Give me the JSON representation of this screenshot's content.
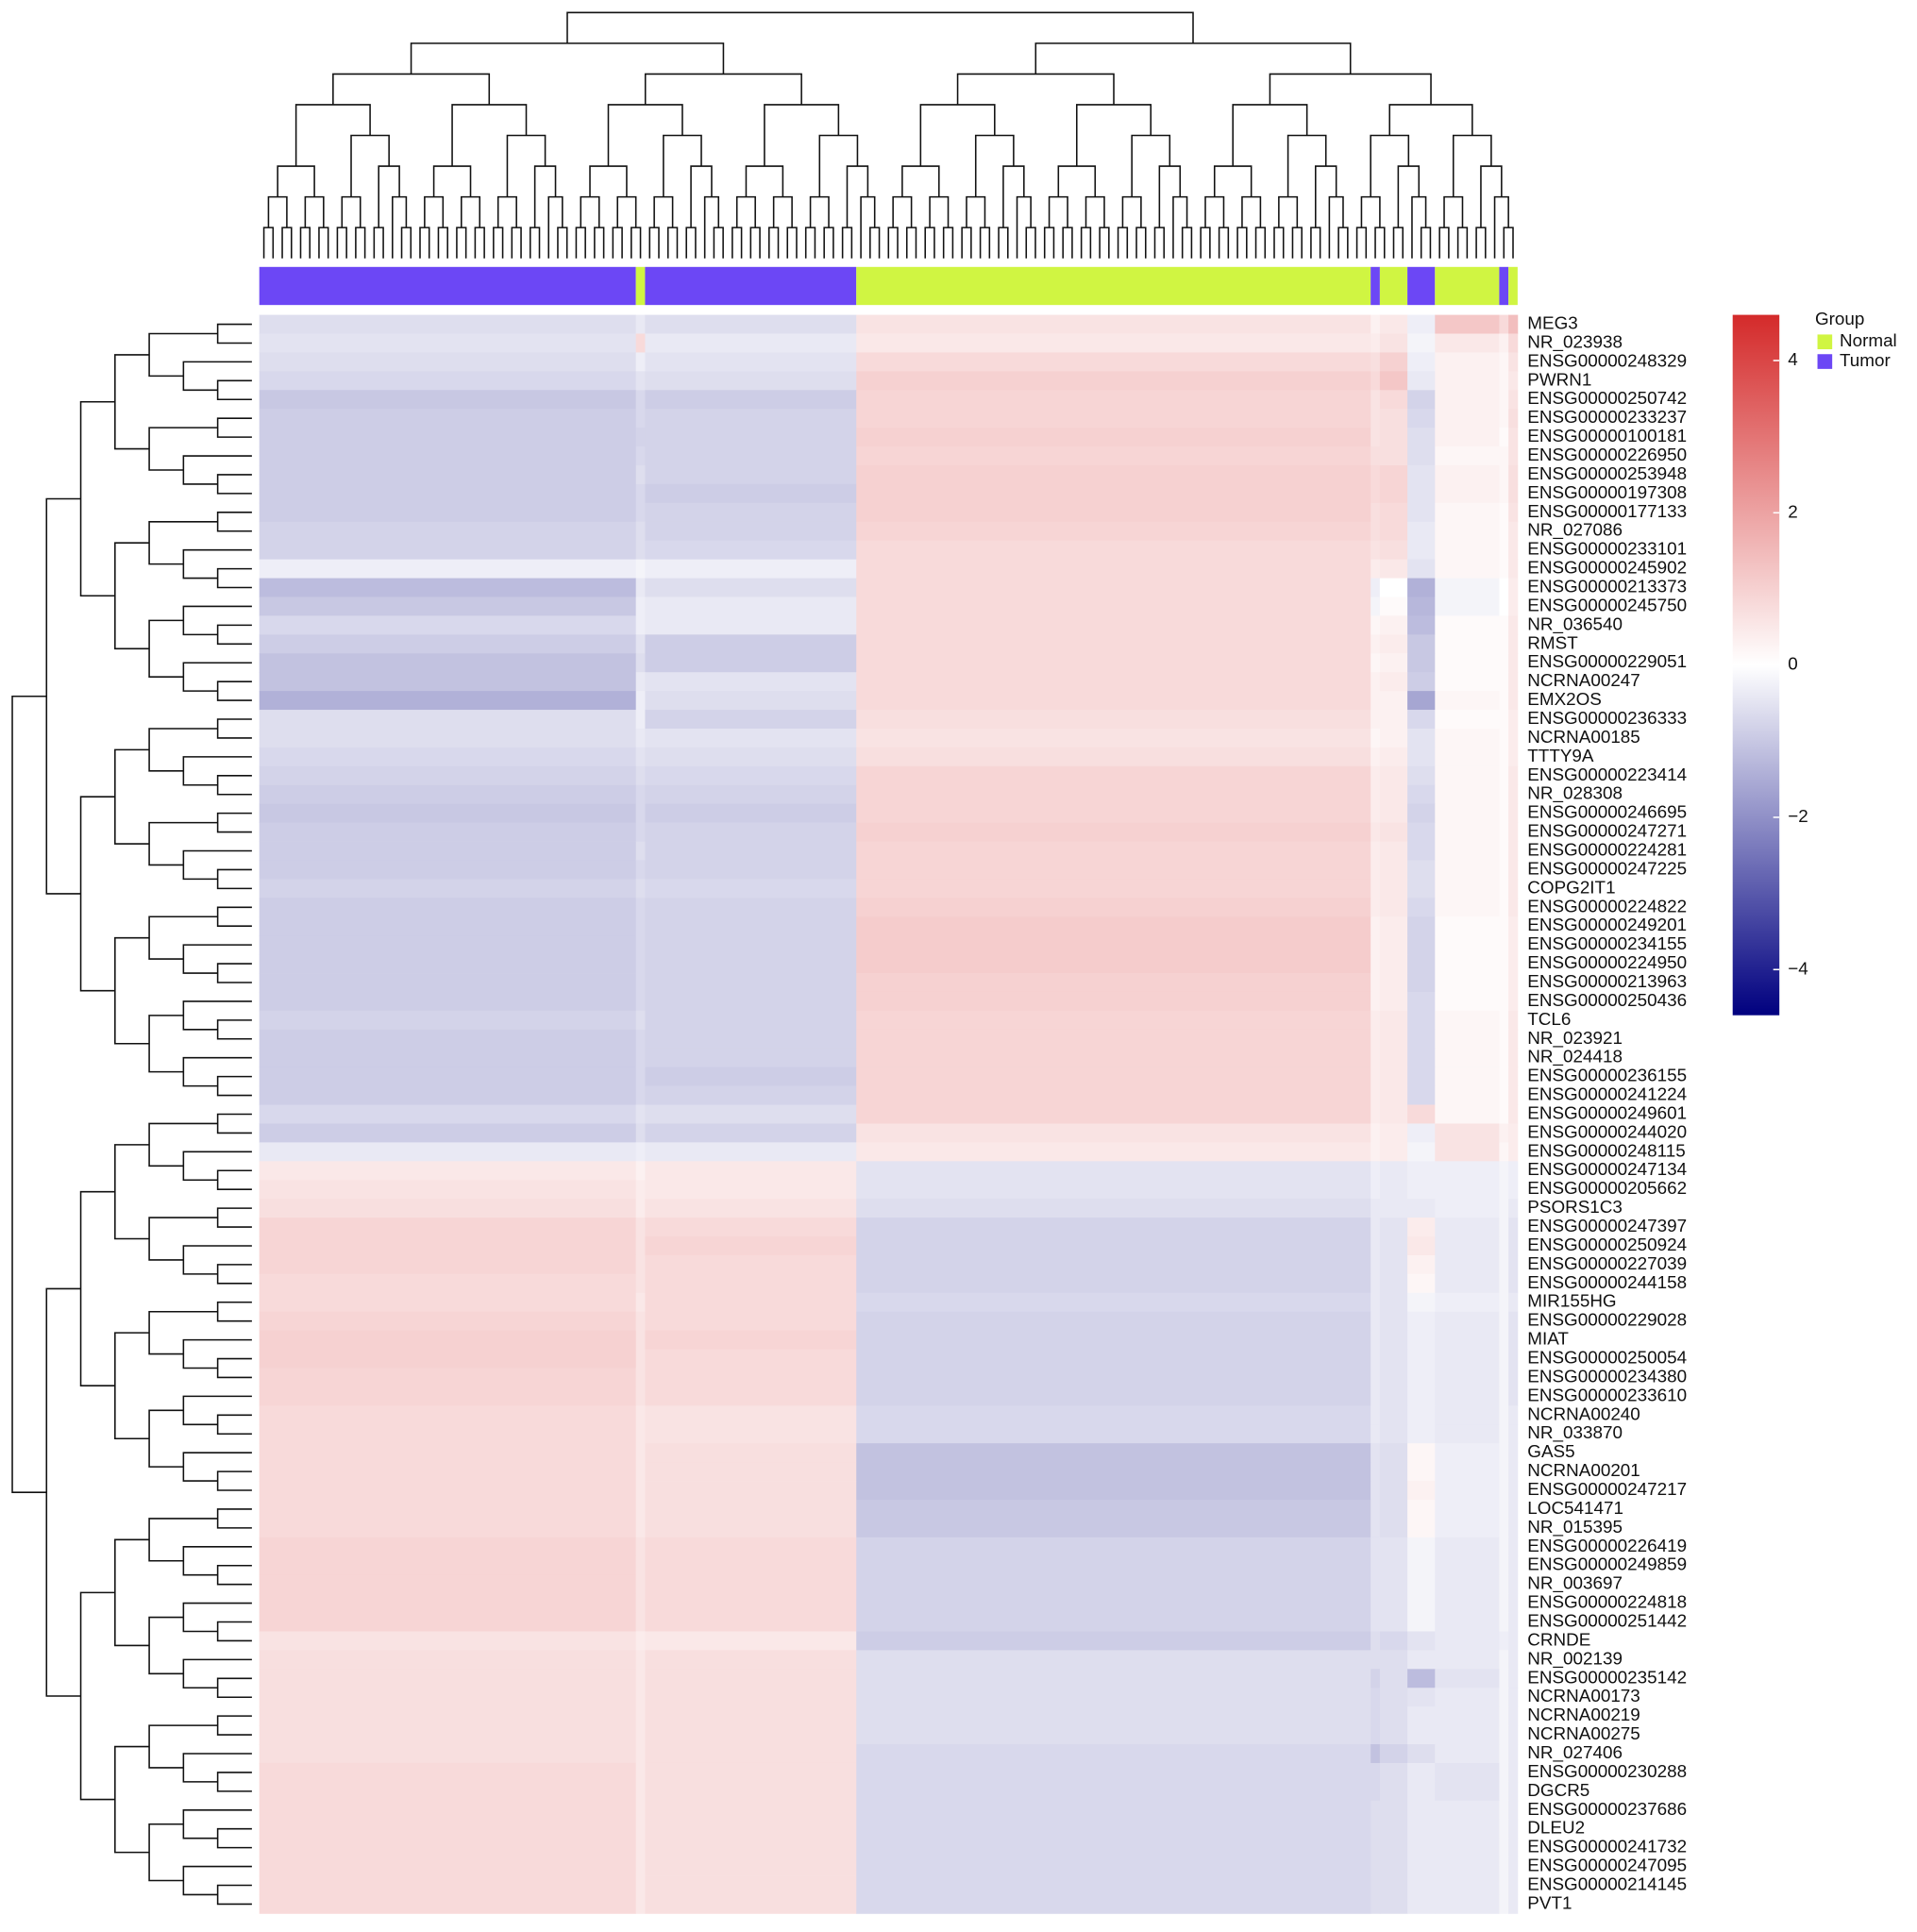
{
  "chart_data": {
    "type": "heatmap",
    "rows": [
      "MEG3",
      "NR_023938",
      "ENSG00000248329",
      "PWRN1",
      "ENSG00000250742",
      "ENSG00000233237",
      "ENSG00000100181",
      "ENSG00000226950",
      "ENSG00000253948",
      "ENSG00000197308",
      "ENSG00000177133",
      "NR_027086",
      "ENSG00000233101",
      "ENSG00000245902",
      "ENSG00000213373",
      "ENSG00000245750",
      "NR_036540",
      "RMST",
      "ENSG00000229051",
      "NCRNA00247",
      "EMX2OS",
      "ENSG00000236333",
      "NCRNA00185",
      "TTTY9A",
      "ENSG00000223414",
      "NR_028308",
      "ENSG00000246695",
      "ENSG00000247271",
      "ENSG00000224281",
      "ENSG00000247225",
      "COPG2IT1",
      "ENSG00000224822",
      "ENSG00000249201",
      "ENSG00000234155",
      "ENSG00000224950",
      "ENSG00000213963",
      "ENSG00000250436",
      "TCL6",
      "NR_023921",
      "NR_024418",
      "ENSG00000236155",
      "ENSG00000241224",
      "ENSG00000249601",
      "ENSG00000244020",
      "ENSG00000248115",
      "ENSG00000247134",
      "ENSG00000205662",
      "PSORS1C3",
      "ENSG00000247397",
      "ENSG00000250924",
      "ENSG00000227039",
      "ENSG00000244158",
      "MIR155HG",
      "ENSG00000229028",
      "MIAT",
      "ENSG00000250054",
      "ENSG00000234380",
      "ENSG00000233610",
      "NCRNA00240",
      "NR_033870",
      "GAS5",
      "NCRNA00201",
      "ENSG00000247217",
      "LOC541471",
      "NR_015395",
      "ENSG00000226419",
      "ENSG00000249859",
      "NR_003697",
      "ENSG00000224818",
      "ENSG00000251442",
      "CRNDE",
      "NR_002139",
      "ENSG00000235142",
      "NCRNA00173",
      "NCRNA00219",
      "NCRNA00275",
      "NR_027406",
      "ENSG00000230288",
      "DGCR5",
      "ENSG00000237686",
      "DLEU2",
      "ENSG00000241732",
      "ENSG00000247095",
      "ENSG00000214145",
      "PVT1"
    ],
    "column_groups": [
      "Tumor",
      "Normal",
      "Tumor",
      "Normal",
      "Tumor",
      "Normal",
      "Tumor",
      "Normal",
      "Tumor",
      "Normal"
    ],
    "column_counts": [
      41,
      1,
      23,
      56,
      1,
      3,
      3,
      7,
      1,
      1
    ],
    "values": [
      [
        -0.6,
        -0.4,
        -0.6,
        0.6,
        0.3,
        0.5,
        -0.3,
        1.2,
        0.8,
        1.4
      ],
      [
        -0.5,
        0.8,
        -0.4,
        0.5,
        0.4,
        0.6,
        -0.2,
        0.5,
        0.3,
        0.8
      ],
      [
        -0.6,
        -0.3,
        -0.5,
        0.8,
        0.7,
        1.0,
        -0.3,
        0.3,
        0.2,
        0.6
      ],
      [
        -0.7,
        -0.5,
        -0.6,
        1.0,
        0.8,
        1.2,
        -0.4,
        0.3,
        0.2,
        0.5
      ],
      [
        -1.0,
        -0.7,
        -0.9,
        0.9,
        0.6,
        0.8,
        -0.8,
        0.3,
        0.2,
        0.6
      ],
      [
        -0.9,
        -0.7,
        -0.8,
        0.9,
        0.6,
        0.7,
        -0.7,
        0.3,
        0.2,
        0.7
      ],
      [
        -0.9,
        -0.8,
        -0.8,
        1.0,
        0.6,
        0.7,
        -0.6,
        0.3,
        0.1,
        0.6
      ],
      [
        -0.9,
        -0.7,
        -0.8,
        0.9,
        0.7,
        0.7,
        -0.6,
        0.2,
        0.2,
        0.6
      ],
      [
        -0.9,
        -0.6,
        -0.8,
        1.0,
        0.8,
        0.9,
        -0.5,
        0.3,
        0.2,
        0.7
      ],
      [
        -0.9,
        -0.7,
        -0.9,
        1.0,
        0.8,
        0.9,
        -0.5,
        0.3,
        0.2,
        0.7
      ],
      [
        -0.9,
        -0.7,
        -0.8,
        1.0,
        0.7,
        0.8,
        -0.5,
        0.2,
        0.1,
        0.6
      ],
      [
        -0.8,
        -0.6,
        -0.8,
        0.9,
        0.7,
        0.8,
        -0.4,
        0.2,
        0.1,
        0.5
      ],
      [
        -0.8,
        -0.6,
        -0.7,
        0.8,
        0.6,
        0.7,
        -0.4,
        0.2,
        0.1,
        0.5
      ],
      [
        -0.3,
        -0.2,
        -0.3,
        0.8,
        0.4,
        0.5,
        -0.5,
        0.2,
        0.1,
        0.5
      ],
      [
        -1.2,
        -0.4,
        -0.6,
        0.8,
        -0.3,
        0.0,
        -1.4,
        -0.2,
        0.0,
        0.4
      ],
      [
        -1.0,
        -0.3,
        -0.4,
        0.8,
        -0.2,
        0.1,
        -1.3,
        -0.2,
        0.0,
        0.4
      ],
      [
        -0.7,
        -0.3,
        -0.4,
        0.8,
        0.2,
        0.3,
        -1.2,
        0.1,
        0.1,
        0.5
      ],
      [
        -0.9,
        -0.5,
        -0.9,
        0.8,
        0.3,
        0.4,
        -1.0,
        0.1,
        0.1,
        0.5
      ],
      [
        -1.1,
        -0.6,
        -0.9,
        0.8,
        0.2,
        0.3,
        -1.0,
        0.1,
        0.1,
        0.5
      ],
      [
        -1.1,
        -0.4,
        -0.5,
        0.8,
        0.3,
        0.4,
        -0.9,
        0.1,
        0.1,
        0.5
      ],
      [
        -1.4,
        -0.3,
        -0.6,
        0.8,
        0.3,
        0.3,
        -1.6,
        0.2,
        0.1,
        0.5
      ],
      [
        -0.6,
        -0.3,
        -0.8,
        0.7,
        0.3,
        0.3,
        -0.7,
        0.1,
        0.1,
        0.4
      ],
      [
        -0.6,
        -0.4,
        -0.5,
        0.6,
        0.2,
        0.3,
        -0.5,
        0.2,
        0.1,
        0.4
      ],
      [
        -0.7,
        -0.5,
        -0.6,
        0.7,
        0.3,
        0.4,
        -0.5,
        0.2,
        0.1,
        0.4
      ],
      [
        -0.8,
        -0.6,
        -0.7,
        0.9,
        0.4,
        0.5,
        -0.6,
        0.2,
        0.1,
        0.5
      ],
      [
        -0.9,
        -0.7,
        -0.8,
        0.9,
        0.4,
        0.5,
        -0.7,
        0.2,
        0.1,
        0.5
      ],
      [
        -1.0,
        -0.7,
        -0.9,
        0.9,
        0.4,
        0.5,
        -0.8,
        0.2,
        0.1,
        0.5
      ],
      [
        -0.9,
        -0.7,
        -0.8,
        1.0,
        0.5,
        0.6,
        -0.7,
        0.2,
        0.1,
        0.5
      ],
      [
        -0.9,
        -0.6,
        -0.8,
        0.9,
        0.4,
        0.5,
        -0.7,
        0.2,
        0.1,
        0.5
      ],
      [
        -0.9,
        -0.7,
        -0.8,
        0.9,
        0.4,
        0.5,
        -0.6,
        0.2,
        0.1,
        0.5
      ],
      [
        -0.8,
        -0.6,
        -0.7,
        0.9,
        0.4,
        0.5,
        -0.6,
        0.2,
        0.1,
        0.5
      ],
      [
        -0.9,
        -0.7,
        -0.8,
        1.0,
        0.4,
        0.5,
        -0.7,
        0.2,
        0.1,
        0.5
      ],
      [
        -0.9,
        -0.7,
        -0.8,
        1.1,
        0.3,
        0.4,
        -0.8,
        0.1,
        0.1,
        0.4
      ],
      [
        -0.9,
        -0.7,
        -0.8,
        1.1,
        0.3,
        0.4,
        -0.8,
        0.1,
        0.1,
        0.4
      ],
      [
        -0.9,
        -0.7,
        -0.8,
        1.1,
        0.3,
        0.4,
        -0.8,
        0.1,
        0.1,
        0.4
      ],
      [
        -0.9,
        -0.7,
        -0.8,
        1.0,
        0.3,
        0.4,
        -0.8,
        0.1,
        0.1,
        0.4
      ],
      [
        -0.9,
        -0.7,
        -0.8,
        1.0,
        0.3,
        0.4,
        -0.7,
        0.1,
        0.1,
        0.4
      ],
      [
        -0.8,
        -0.6,
        -0.8,
        0.9,
        0.4,
        0.5,
        -0.7,
        0.2,
        0.1,
        0.5
      ],
      [
        -0.9,
        -0.7,
        -0.8,
        0.9,
        0.4,
        0.5,
        -0.7,
        0.2,
        0.1,
        0.5
      ],
      [
        -0.9,
        -0.7,
        -0.8,
        0.9,
        0.4,
        0.5,
        -0.7,
        0.2,
        0.1,
        0.5
      ],
      [
        -0.9,
        -0.7,
        -0.9,
        0.9,
        0.4,
        0.5,
        -0.7,
        0.2,
        0.1,
        0.5
      ],
      [
        -0.9,
        -0.7,
        -0.8,
        0.9,
        0.4,
        0.5,
        -0.7,
        0.2,
        0.1,
        0.5
      ],
      [
        -0.7,
        -0.5,
        -0.6,
        0.9,
        0.4,
        0.5,
        0.8,
        0.2,
        0.1,
        0.5
      ],
      [
        -0.9,
        -0.6,
        -0.8,
        0.6,
        0.3,
        0.4,
        -0.3,
        0.6,
        0.3,
        0.4
      ],
      [
        -0.4,
        -0.3,
        -0.4,
        0.5,
        0.3,
        0.4,
        -0.2,
        0.6,
        0.2,
        0.4
      ],
      [
        0.5,
        0.3,
        0.5,
        -0.5,
        -0.3,
        -0.4,
        -0.3,
        -0.3,
        -0.2,
        -0.3
      ],
      [
        0.6,
        0.4,
        0.5,
        -0.5,
        -0.3,
        -0.4,
        -0.3,
        -0.3,
        -0.2,
        -0.3
      ],
      [
        0.7,
        0.4,
        0.6,
        -0.6,
        -0.4,
        -0.4,
        -0.4,
        -0.3,
        -0.2,
        -0.4
      ],
      [
        0.9,
        0.6,
        0.8,
        -0.8,
        -0.4,
        -0.5,
        0.4,
        -0.4,
        -0.2,
        -0.5
      ],
      [
        0.9,
        0.6,
        0.9,
        -0.8,
        -0.4,
        -0.5,
        0.5,
        -0.4,
        -0.2,
        -0.5
      ],
      [
        0.9,
        0.6,
        0.8,
        -0.8,
        -0.4,
        -0.5,
        0.3,
        -0.4,
        -0.2,
        -0.5
      ],
      [
        0.8,
        0.6,
        0.8,
        -0.8,
        -0.4,
        -0.5,
        0.2,
        -0.4,
        -0.2,
        -0.5
      ],
      [
        0.8,
        0.5,
        0.8,
        -0.7,
        -0.4,
        -0.5,
        -0.2,
        -0.3,
        -0.2,
        -0.4
      ],
      [
        0.9,
        0.6,
        0.8,
        -0.8,
        -0.4,
        -0.5,
        -0.3,
        -0.4,
        -0.2,
        -0.5
      ],
      [
        1.0,
        0.6,
        0.9,
        -0.8,
        -0.4,
        -0.5,
        -0.3,
        -0.4,
        -0.2,
        -0.5
      ],
      [
        1.0,
        0.6,
        0.8,
        -0.8,
        -0.4,
        -0.5,
        -0.3,
        -0.4,
        -0.2,
        -0.5
      ],
      [
        0.9,
        0.6,
        0.8,
        -0.8,
        -0.4,
        -0.5,
        -0.3,
        -0.4,
        -0.2,
        -0.5
      ],
      [
        0.9,
        0.6,
        0.8,
        -0.8,
        -0.4,
        -0.5,
        -0.3,
        -0.4,
        -0.2,
        -0.5
      ],
      [
        0.8,
        0.5,
        0.6,
        -0.7,
        -0.4,
        -0.5,
        -0.3,
        -0.4,
        -0.2,
        -0.4
      ],
      [
        0.8,
        0.5,
        0.6,
        -0.7,
        -0.4,
        -0.5,
        -0.3,
        -0.4,
        -0.2,
        -0.4
      ],
      [
        0.8,
        0.5,
        0.7,
        -1.1,
        -0.5,
        -0.6,
        0.2,
        -0.3,
        -0.2,
        -0.4
      ],
      [
        0.8,
        0.5,
        0.7,
        -1.1,
        -0.5,
        -0.6,
        0.2,
        -0.3,
        -0.2,
        -0.4
      ],
      [
        0.8,
        0.5,
        0.7,
        -1.1,
        -0.5,
        -0.6,
        0.3,
        -0.3,
        -0.2,
        -0.4
      ],
      [
        0.8,
        0.5,
        0.7,
        -1.0,
        -0.5,
        -0.6,
        0.2,
        -0.3,
        -0.2,
        -0.4
      ],
      [
        0.8,
        0.5,
        0.7,
        -1.0,
        -0.5,
        -0.6,
        0.2,
        -0.3,
        -0.2,
        -0.4
      ],
      [
        0.9,
        0.6,
        0.8,
        -0.8,
        -0.5,
        -0.5,
        -0.2,
        -0.4,
        -0.2,
        -0.4
      ],
      [
        0.9,
        0.6,
        0.8,
        -0.8,
        -0.5,
        -0.5,
        -0.2,
        -0.4,
        -0.2,
        -0.4
      ],
      [
        0.9,
        0.6,
        0.8,
        -0.8,
        -0.5,
        -0.5,
        -0.2,
        -0.4,
        -0.2,
        -0.4
      ],
      [
        0.9,
        0.6,
        0.8,
        -0.8,
        -0.5,
        -0.5,
        -0.2,
        -0.4,
        -0.2,
        -0.4
      ],
      [
        0.9,
        0.6,
        0.8,
        -0.8,
        -0.5,
        -0.5,
        -0.2,
        -0.4,
        -0.2,
        -0.4
      ],
      [
        0.6,
        0.4,
        0.5,
        -0.9,
        -0.6,
        -0.7,
        -0.5,
        -0.4,
        -0.3,
        -0.4
      ],
      [
        0.7,
        0.5,
        0.7,
        -0.6,
        -0.6,
        -0.6,
        -0.4,
        -0.4,
        -0.2,
        -0.4
      ],
      [
        0.7,
        0.5,
        0.7,
        -0.6,
        -0.8,
        -0.6,
        -1.2,
        -0.5,
        -0.2,
        -0.4
      ],
      [
        0.7,
        0.5,
        0.7,
        -0.6,
        -0.7,
        -0.6,
        -0.5,
        -0.4,
        -0.2,
        -0.4
      ],
      [
        0.7,
        0.5,
        0.7,
        -0.6,
        -0.7,
        -0.6,
        -0.4,
        -0.4,
        -0.2,
        -0.4
      ],
      [
        0.7,
        0.5,
        0.7,
        -0.6,
        -0.7,
        -0.6,
        -0.4,
        -0.4,
        -0.2,
        -0.4
      ],
      [
        0.7,
        0.5,
        0.7,
        -0.7,
        -1.1,
        -0.8,
        -0.6,
        -0.4,
        -0.2,
        -0.4
      ],
      [
        0.8,
        0.5,
        0.7,
        -0.7,
        -0.7,
        -0.6,
        -0.4,
        -0.5,
        -0.2,
        -0.4
      ],
      [
        0.8,
        0.5,
        0.7,
        -0.7,
        -0.7,
        -0.6,
        -0.4,
        -0.5,
        -0.2,
        -0.4
      ],
      [
        0.8,
        0.5,
        0.7,
        -0.7,
        -0.6,
        -0.6,
        -0.4,
        -0.4,
        -0.2,
        -0.4
      ],
      [
        0.8,
        0.5,
        0.7,
        -0.7,
        -0.6,
        -0.6,
        -0.4,
        -0.4,
        -0.2,
        -0.4
      ],
      [
        0.8,
        0.5,
        0.7,
        -0.7,
        -0.6,
        -0.6,
        -0.4,
        -0.4,
        -0.2,
        -0.4
      ],
      [
        0.8,
        0.5,
        0.7,
        -0.7,
        -0.6,
        -0.6,
        -0.4,
        -0.4,
        -0.2,
        -0.4
      ],
      [
        0.8,
        0.5,
        0.7,
        -0.7,
        -0.6,
        -0.6,
        -0.4,
        -0.4,
        -0.2,
        -0.4
      ],
      [
        0.8,
        0.5,
        0.7,
        -0.7,
        -0.6,
        -0.6,
        -0.4,
        -0.4,
        -0.2,
        -0.4
      ]
    ],
    "group_legend": {
      "title": "Group",
      "names": [
        "Normal",
        "Tumor"
      ],
      "colors": [
        "#d0f542",
        "#6c47f5"
      ]
    },
    "zlim": [
      -4.6,
      4.6
    ],
    "zticks": [
      {
        "value": -4,
        "label": "−4"
      },
      {
        "value": -2,
        "label": "−2"
      },
      0,
      2,
      4
    ],
    "colormap": [
      "#00007f",
      "#ffffff",
      "#d42a2a"
    ]
  }
}
